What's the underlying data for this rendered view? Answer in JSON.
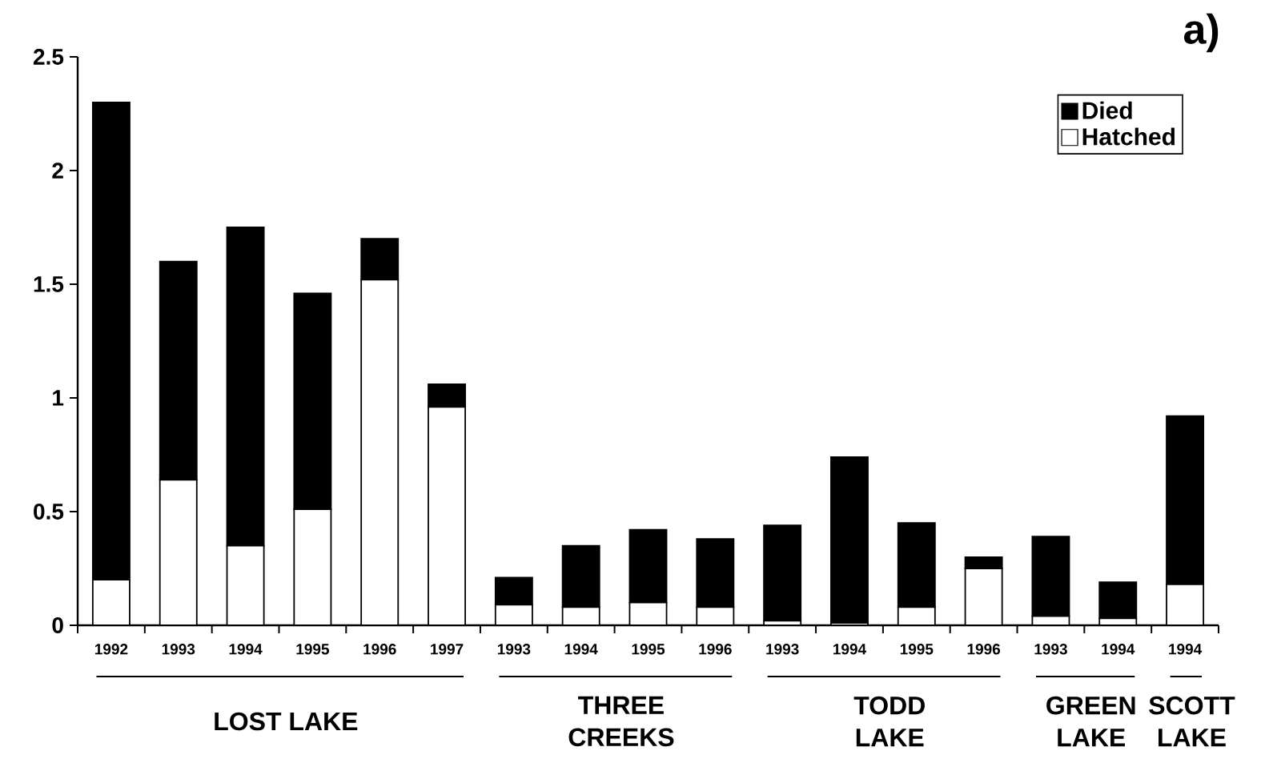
{
  "chart_data": {
    "type": "bar",
    "title": "a)",
    "stacked": true,
    "categories": [
      "1992",
      "1993",
      "1994",
      "1995",
      "1996",
      "1997",
      "1993",
      "1994",
      "1995",
      "1996",
      "1993",
      "1994",
      "1995",
      "1996",
      "1993",
      "1994",
      "1994"
    ],
    "series": [
      {
        "name": "Hatched",
        "color": "#ffffff",
        "values": [
          0.2,
          0.64,
          0.35,
          0.51,
          1.52,
          0.96,
          0.09,
          0.08,
          0.1,
          0.08,
          0.02,
          0.01,
          0.08,
          0.25,
          0.04,
          0.03,
          0.18
        ]
      },
      {
        "name": "Died",
        "color": "#000000",
        "values": [
          2.1,
          0.96,
          1.4,
          0.95,
          0.18,
          0.1,
          0.12,
          0.27,
          0.32,
          0.3,
          0.42,
          0.73,
          0.37,
          0.05,
          0.35,
          0.16,
          0.74
        ]
      }
    ],
    "ylim": [
      0,
      2.5
    ],
    "yticks": [
      0,
      0.5,
      1,
      1.5,
      2,
      2.5
    ],
    "legend": "top right",
    "annotations": [
      "LOST LAKE",
      "THREE CREEKS",
      "TODD LAKE",
      "GREEN LAKE",
      "SCOTT LAKE"
    ]
  }
}
